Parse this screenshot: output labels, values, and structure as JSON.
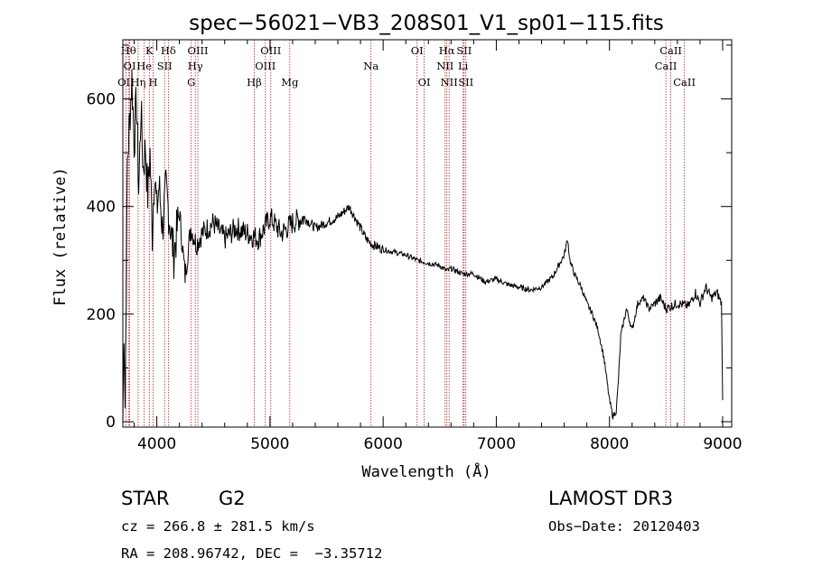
{
  "chart_data": {
    "type": "line",
    "title": "spec−56021−VB3_208S01_V1_sp01−115.fits",
    "xlabel": "Wavelength (Å)",
    "ylabel": "Flux (relative)",
    "xlim": [
      3700,
      9080
    ],
    "ylim": [
      -10,
      710
    ],
    "x_ticks": [
      4000,
      5000,
      6000,
      7000,
      8000,
      9000
    ],
    "y_ticks": [
      0,
      200,
      400,
      600
    ],
    "series": [
      {
        "name": "flux",
        "x": [
          3700,
          3710,
          3720,
          3740,
          3760,
          3780,
          3800,
          3820,
          3840,
          3860,
          3880,
          3900,
          3920,
          3940,
          3960,
          3980,
          4000,
          4020,
          4050,
          4080,
          4100,
          4150,
          4200,
          4250,
          4300,
          4350,
          4400,
          4500,
          4600,
          4700,
          4800,
          4900,
          5000,
          5100,
          5200,
          5300,
          5400,
          5500,
          5600,
          5700,
          5750,
          5800,
          5850,
          5900,
          6000,
          6100,
          6200,
          6300,
          6400,
          6500,
          6563,
          6600,
          6700,
          6800,
          6900,
          7000,
          7100,
          7200,
          7300,
          7400,
          7500,
          7550,
          7600,
          7630,
          7650,
          7680,
          7700,
          7750,
          7800,
          7850,
          7900,
          7950,
          8000,
          8030,
          8060,
          8080,
          8100,
          8130,
          8150,
          8200,
          8250,
          8300,
          8350,
          8400,
          8450,
          8500,
          8600,
          8700,
          8760,
          8800,
          8850,
          8900,
          8950,
          8990,
          9000
        ],
        "y": [
          0,
          180,
          30,
          480,
          560,
          640,
          520,
          600,
          430,
          580,
          470,
          510,
          420,
          500,
          350,
          470,
          390,
          440,
          360,
          430,
          400,
          310,
          390,
          270,
          360,
          330,
          350,
          370,
          340,
          360,
          350,
          340,
          380,
          350,
          370,
          380,
          360,
          370,
          380,
          400,
          380,
          360,
          340,
          330,
          320,
          315,
          310,
          300,
          295,
          290,
          280,
          285,
          275,
          275,
          260,
          265,
          255,
          250,
          245,
          250,
          270,
          290,
          310,
          340,
          300,
          280,
          270,
          250,
          220,
          200,
          170,
          120,
          40,
          10,
          20,
          80,
          160,
          190,
          210,
          170,
          220,
          230,
          210,
          220,
          230,
          210,
          220,
          215,
          240,
          220,
          250,
          230,
          240,
          220,
          40
        ]
      }
    ],
    "line_markers": [
      {
        "name": "O II",
        "wavelength": 3727,
        "label": "OII",
        "row": 3
      },
      {
        "name": "H theta",
        "wavelength": 3750,
        "label": "Hθ",
        "row": 1
      },
      {
        "name": "O III",
        "wavelength": 3760,
        "label": "OI",
        "row": 2
      },
      {
        "name": "H eta",
        "wavelength": 3835,
        "label": "Hη",
        "row": 3
      },
      {
        "name": "He I",
        "wavelength": 3889,
        "label": "He",
        "row": 2
      },
      {
        "name": "K",
        "wavelength": 3934,
        "label": "K",
        "row": 1
      },
      {
        "name": "H",
        "wavelength": 3968,
        "label": "H",
        "row": 3
      },
      {
        "name": "S II",
        "wavelength": 4069,
        "label": "SII",
        "row": 2
      },
      {
        "name": "H delta",
        "wavelength": 4102,
        "label": "Hδ",
        "row": 1
      },
      {
        "name": "G",
        "wavelength": 4304,
        "label": "G",
        "row": 3
      },
      {
        "name": "H gamma",
        "wavelength": 4340,
        "label": "Hγ",
        "row": 2
      },
      {
        "name": "O III 4363",
        "wavelength": 4363,
        "label": "OIII",
        "row": 1
      },
      {
        "name": "H beta",
        "wavelength": 4861,
        "label": "Hβ",
        "row": 3
      },
      {
        "name": "O III 4959",
        "wavelength": 4959,
        "label": "OIII",
        "row": 2
      },
      {
        "name": "O III 5007",
        "wavelength": 5007,
        "label": "OIII",
        "row": 1
      },
      {
        "name": "Mg",
        "wavelength": 5175,
        "label": "Mg",
        "row": 3
      },
      {
        "name": "Na",
        "wavelength": 5893,
        "label": "Na",
        "row": 2
      },
      {
        "name": "O I 6300",
        "wavelength": 6300,
        "label": "OI",
        "row": 1
      },
      {
        "name": "O I 6363",
        "wavelength": 6363,
        "label": "OI",
        "row": 3
      },
      {
        "name": "N II 6548",
        "wavelength": 6548,
        "label": "NII",
        "row": 2
      },
      {
        "name": "H alpha",
        "wavelength": 6563,
        "label": "Hα",
        "row": 1
      },
      {
        "name": "N II 6583",
        "wavelength": 6583,
        "label": "NII",
        "row": 3
      },
      {
        "name": "Li",
        "wavelength": 6707,
        "label": "Li",
        "row": 2
      },
      {
        "name": "S II 6716",
        "wavelength": 6716,
        "label": "SII",
        "row": 1
      },
      {
        "name": "S II 6731",
        "wavelength": 6731,
        "label": "SII",
        "row": 3
      },
      {
        "name": "Ca II 8498",
        "wavelength": 8498,
        "label": "CaII",
        "row": 2
      },
      {
        "name": "Ca II 8542",
        "wavelength": 8542,
        "label": "CaII",
        "row": 1
      },
      {
        "name": "Ca II 8662",
        "wavelength": 8662,
        "label": "CaII",
        "row": 3
      }
    ],
    "marker_color": "#b22222",
    "line_color": "#000000"
  },
  "footer": {
    "object_type": "STAR",
    "subclass": "G2",
    "survey": "LAMOST DR3",
    "cz": "cz = 266.8 ± 281.5 km/s",
    "obs_date": "Obs−Date: 20120403",
    "coords": "RA = 208.96742, DEC =  −3.35712"
  }
}
